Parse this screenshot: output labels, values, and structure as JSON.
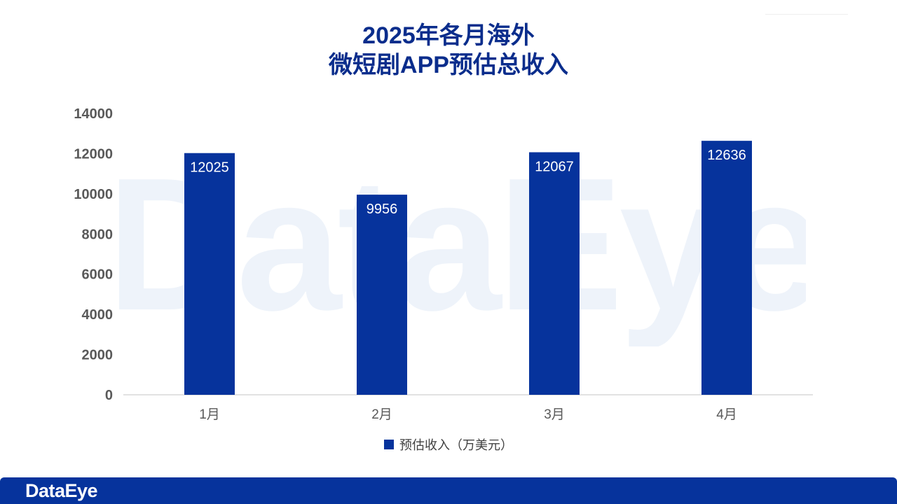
{
  "chart_data": {
    "type": "bar",
    "title_lines": [
      "2025年各月海外",
      "微短剧APP预估总收入"
    ],
    "categories": [
      "1月",
      "2月",
      "3月",
      "4月"
    ],
    "series": [
      {
        "name": "预估收入（万美元）",
        "values": [
          12025,
          9956,
          12067,
          12636
        ]
      }
    ],
    "yticks": [
      0,
      2000,
      4000,
      6000,
      8000,
      10000,
      12000,
      14000
    ],
    "ylim": [
      0,
      14000
    ],
    "grid": false,
    "legend_position": "bottom-center",
    "data_labels": "inside-top",
    "bar_color": "#06339c"
  },
  "watermark": "DataEye",
  "footer": {
    "logo": "DataEye",
    "color": "#06339c"
  }
}
